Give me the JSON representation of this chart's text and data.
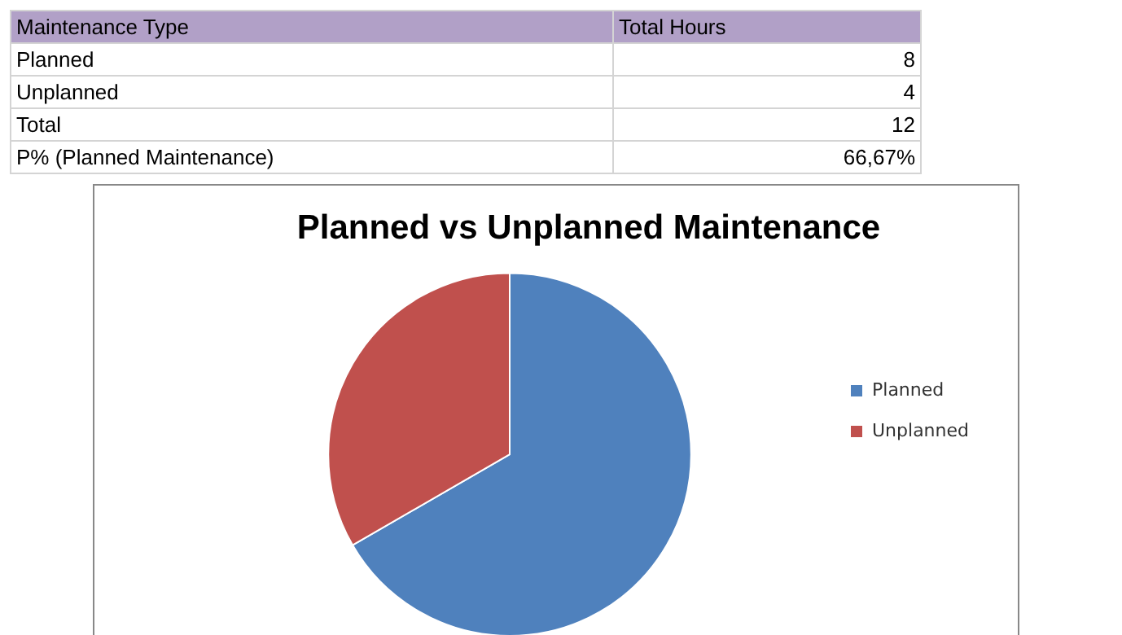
{
  "chart_data": {
    "type": "pie",
    "title": "Planned vs Unplanned Maintenance",
    "categories": [
      "Planned",
      "Unplanned"
    ],
    "values": [
      66.67,
      33.33
    ],
    "colors": [
      "#4f81bd",
      "#c0504d"
    ],
    "legend": "right",
    "annotations": [
      "Maintenance Type",
      "Total Hours",
      "Planned",
      "8",
      "Unplanned",
      "4",
      "Total",
      "12",
      "P% (Planned Maintenance)",
      "66,67%"
    ]
  }
}
